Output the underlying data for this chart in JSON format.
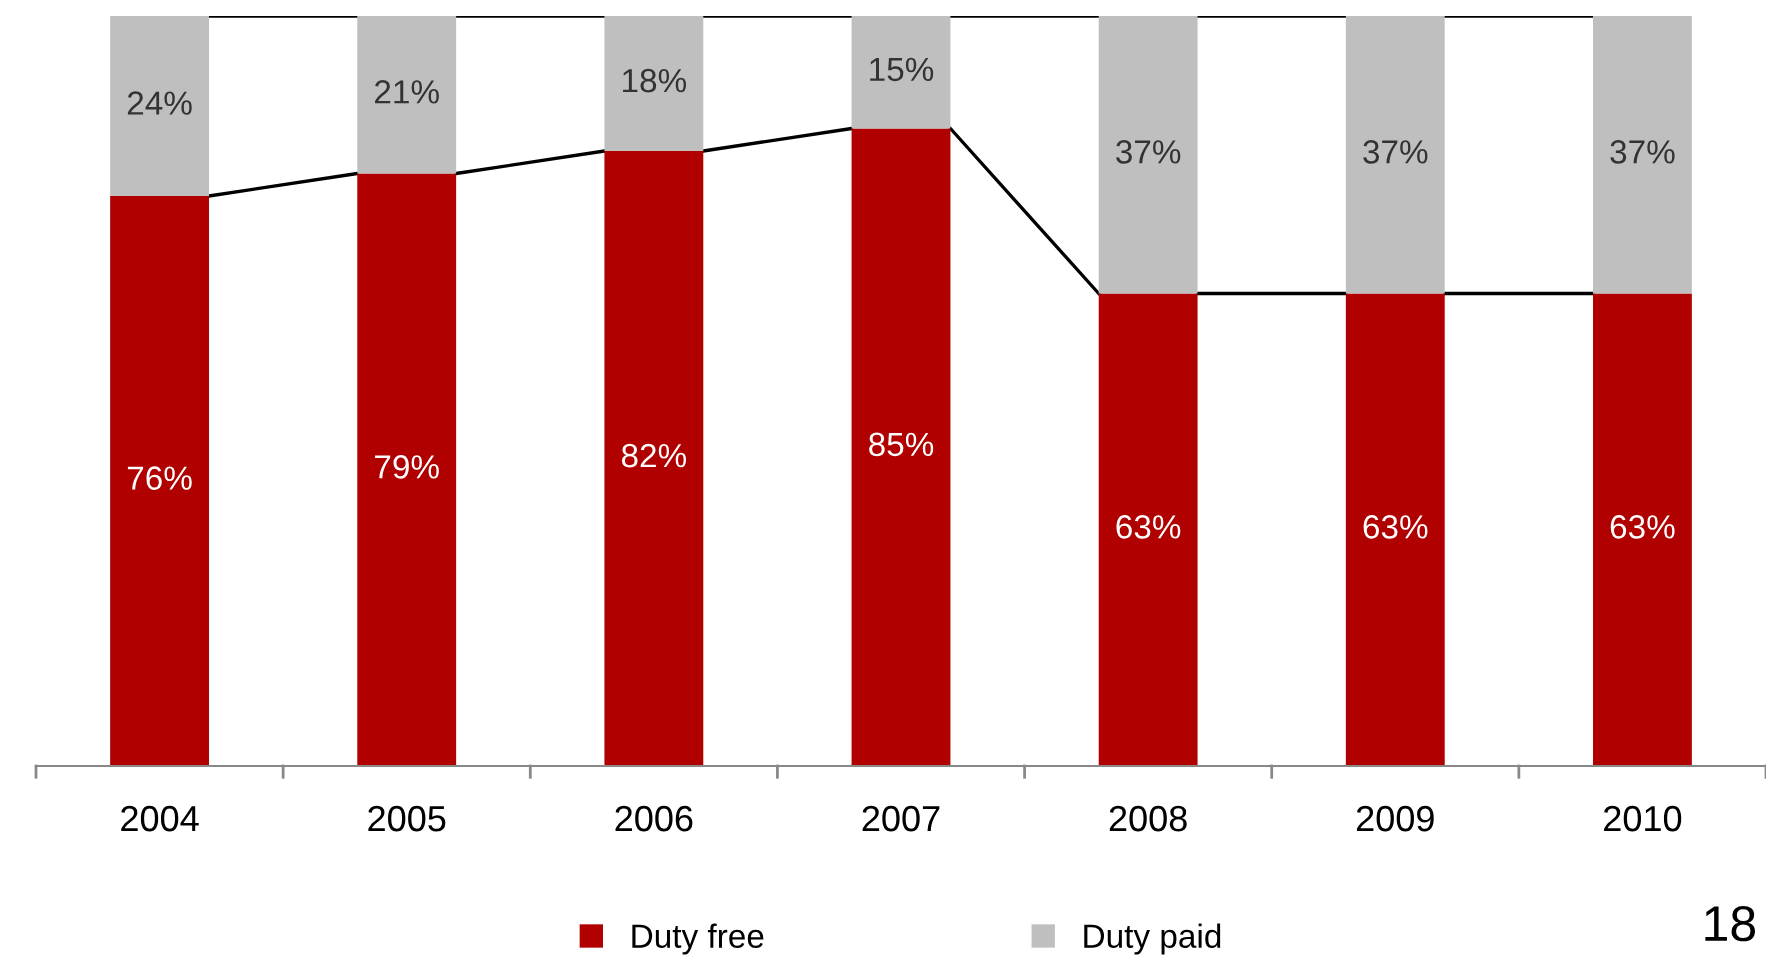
{
  "chart_data": {
    "type": "bar",
    "stacked": true,
    "legend": "bottom",
    "grid": false,
    "categories": [
      "2004",
      "2005",
      "2006",
      "2007",
      "2008",
      "2009",
      "2010"
    ],
    "series": [
      {
        "name": "Duty free",
        "color": "#b00000",
        "values": [
          76,
          79,
          82,
          85,
          63,
          63,
          63
        ],
        "value_labels": [
          "76%",
          "79%",
          "82%",
          "85%",
          "63%",
          "63%",
          "63%"
        ]
      },
      {
        "name": "Duty paid",
        "color": "#bfbfbf",
        "values": [
          24,
          21,
          18,
          15,
          37,
          37,
          37
        ],
        "value_labels": [
          "24%",
          "21%",
          "18%",
          "15%",
          "37%",
          "37%",
          "37%"
        ]
      }
    ],
    "annotations": [
      "18"
    ]
  }
}
